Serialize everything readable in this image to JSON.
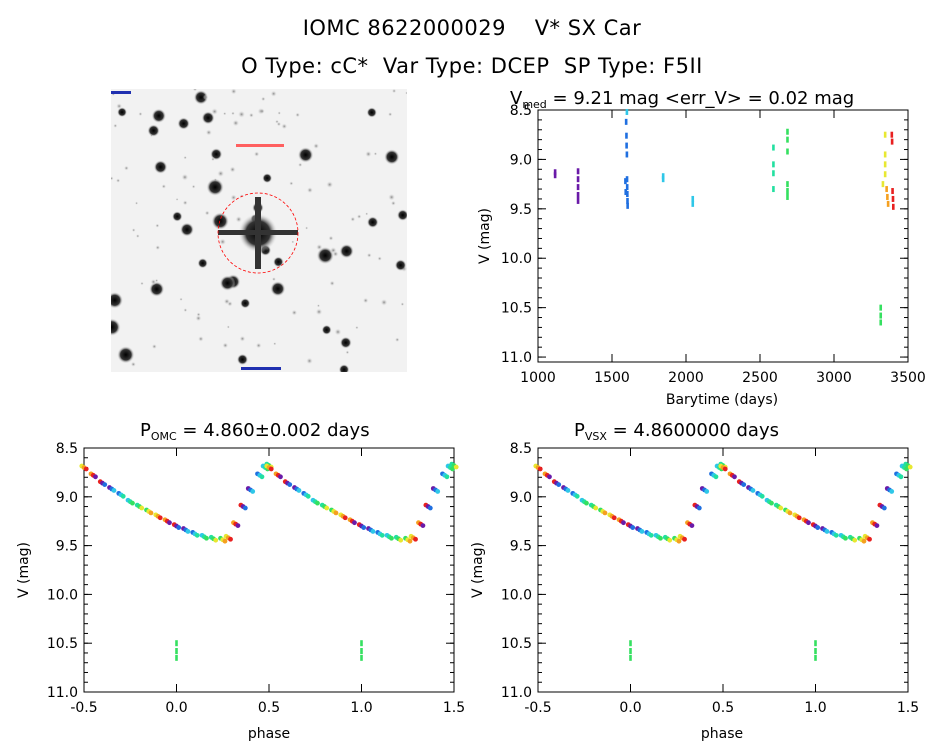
{
  "header": {
    "line1": "IOMC 8622000029    V* SX Car",
    "line2": "O Type: cC*  Var Type: DCEP  SP Type: F5II"
  },
  "image_panel": {
    "description_icon": "sky-finder-chart",
    "circle_color": "#ff0000"
  },
  "chart_data": [
    {
      "id": "lightcurve",
      "type": "scatter",
      "title_main": "V",
      "title_sub": "med",
      "title_rest": " = 9.21 mag <err_V> = 0.02 mag",
      "xlabel": "Barytime (days)",
      "ylabel": "V (mag)",
      "xlim": [
        1000,
        3500
      ],
      "ylim": [
        11.05,
        8.5
      ],
      "xticks": [
        "1000",
        "1500",
        "2000",
        "2500",
        "3000",
        "3500"
      ],
      "xtick_values": [
        1000,
        1500,
        2000,
        2500,
        3000,
        3500
      ],
      "yticks": [
        "8.5",
        "9.0",
        "9.5",
        "10.0",
        "10.5",
        "11.0"
      ],
      "ytick_values": [
        8.5,
        9.0,
        9.5,
        10.0,
        10.5,
        11.0
      ],
      "series": [
        {
          "color": "#6a1aa8",
          "points": [
            [
              1115,
              9.13
            ],
            [
              1115,
              9.16
            ],
            [
              1270,
              9.12
            ],
            [
              1270,
              9.2
            ],
            [
              1270,
              9.28
            ],
            [
              1270,
              9.36
            ],
            [
              1270,
              9.42
            ]
          ]
        },
        {
          "color": "#1f6fe0",
          "points": [
            [
              1595,
              8.62
            ],
            [
              1597,
              8.76
            ],
            [
              1598,
              8.86
            ],
            [
              1600,
              8.95
            ],
            [
              1601,
              9.2
            ],
            [
              1602,
              9.28
            ],
            [
              1603,
              9.35
            ],
            [
              1604,
              9.42
            ],
            [
              1605,
              9.47
            ],
            [
              1590,
              9.22
            ],
            [
              1592,
              9.33
            ]
          ]
        },
        {
          "color": "#2fc7e8",
          "points": [
            [
              1600,
              8.52
            ],
            [
              1845,
              9.17
            ],
            [
              1845,
              9.2
            ],
            [
              2045,
              9.4
            ],
            [
              2045,
              9.45
            ]
          ]
        },
        {
          "color": "#22e0a0",
          "points": [
            [
              2590,
              8.88
            ],
            [
              2590,
              9.05
            ],
            [
              2590,
              9.14
            ],
            [
              2590,
              9.3
            ]
          ]
        },
        {
          "color": "#35e060",
          "points": [
            [
              2685,
              8.72
            ],
            [
              2685,
              8.8
            ],
            [
              2685,
              8.92
            ],
            [
              2685,
              9.25
            ],
            [
              2685,
              9.32
            ],
            [
              2685,
              9.38
            ],
            [
              3315,
              10.5
            ],
            [
              3315,
              10.58
            ],
            [
              3315,
              10.65
            ]
          ]
        },
        {
          "color": "#e8e832",
          "points": [
            [
              3345,
              8.75
            ],
            [
              3345,
              8.95
            ],
            [
              3345,
              9.05
            ],
            [
              3345,
              9.15
            ],
            [
              3330,
              9.25
            ]
          ]
        },
        {
          "color": "#f5a020",
          "points": [
            [
              3355,
              9.3
            ],
            [
              3360,
              9.38
            ],
            [
              3365,
              9.45
            ]
          ]
        },
        {
          "color": "#e82020",
          "points": [
            [
              3390,
              8.75
            ],
            [
              3392,
              8.82
            ],
            [
              3395,
              9.32
            ],
            [
              3398,
              9.4
            ],
            [
              3400,
              9.48
            ]
          ]
        }
      ]
    },
    {
      "id": "phase-omc",
      "type": "scatter",
      "title_main": "P",
      "title_sub": "OMC",
      "title_rest": " = 4.860±0.002 days",
      "xlabel": "phase",
      "ylabel": "V (mag)",
      "xlim": [
        -0.5,
        1.5
      ],
      "ylim": [
        11.0,
        8.5
      ],
      "xticks": [
        "-0.5",
        "0.0",
        "0.5",
        "1.0",
        "1.5"
      ],
      "xtick_values": [
        -0.5,
        0.0,
        0.5,
        1.0,
        1.5
      ],
      "yticks": [
        "8.5",
        "9.0",
        "9.5",
        "10.0",
        "10.5",
        "11.0"
      ],
      "ytick_values": [
        8.5,
        9.0,
        9.5,
        10.0,
        10.5,
        11.0
      ]
    },
    {
      "id": "phase-vsx",
      "type": "scatter",
      "title_main": "P",
      "title_sub": "VSX",
      "title_rest": " = 4.8600000 days",
      "xlabel": "phase",
      "ylabel": "V (mag)",
      "xlim": [
        -0.5,
        1.5
      ],
      "ylim": [
        11.0,
        8.5
      ],
      "xticks": [
        "-0.5",
        "0.0",
        "0.5",
        "1.0",
        "1.5"
      ],
      "xtick_values": [
        -0.5,
        0.0,
        0.5,
        1.0,
        1.5
      ],
      "yticks": [
        "8.5",
        "9.0",
        "9.5",
        "10.0",
        "10.5",
        "11.0"
      ],
      "ytick_values": [
        8.5,
        9.0,
        9.5,
        10.0,
        10.5,
        11.0
      ]
    }
  ],
  "phase_curve": {
    "colors": [
      "#e8e832",
      "#f5a020",
      "#e82020",
      "#6a1aa8",
      "#1f6fe0",
      "#2fc7e8",
      "#22e0a0",
      "#35e060"
    ],
    "points": [
      [
        -0.5,
        8.7
      ],
      [
        -0.45,
        8.78
      ],
      [
        -0.4,
        8.86
      ],
      [
        -0.35,
        8.92
      ],
      [
        -0.3,
        8.98
      ],
      [
        -0.25,
        9.05
      ],
      [
        -0.2,
        9.1
      ],
      [
        -0.15,
        9.15
      ],
      [
        -0.1,
        9.2
      ],
      [
        -0.05,
        9.25
      ],
      [
        0.0,
        9.3
      ],
      [
        0.05,
        9.34
      ],
      [
        0.1,
        9.38
      ],
      [
        0.15,
        9.41
      ],
      [
        0.2,
        9.43
      ],
      [
        0.25,
        9.44
      ],
      [
        0.28,
        9.42
      ],
      [
        0.32,
        9.28
      ],
      [
        0.36,
        9.1
      ],
      [
        0.4,
        8.93
      ],
      [
        0.45,
        8.78
      ],
      [
        0.48,
        8.7
      ],
      [
        0.5,
        8.68
      ]
    ],
    "faint_points": [
      [
        0.0,
        10.5
      ],
      [
        0.0,
        10.58
      ],
      [
        0.0,
        10.65
      ]
    ]
  }
}
